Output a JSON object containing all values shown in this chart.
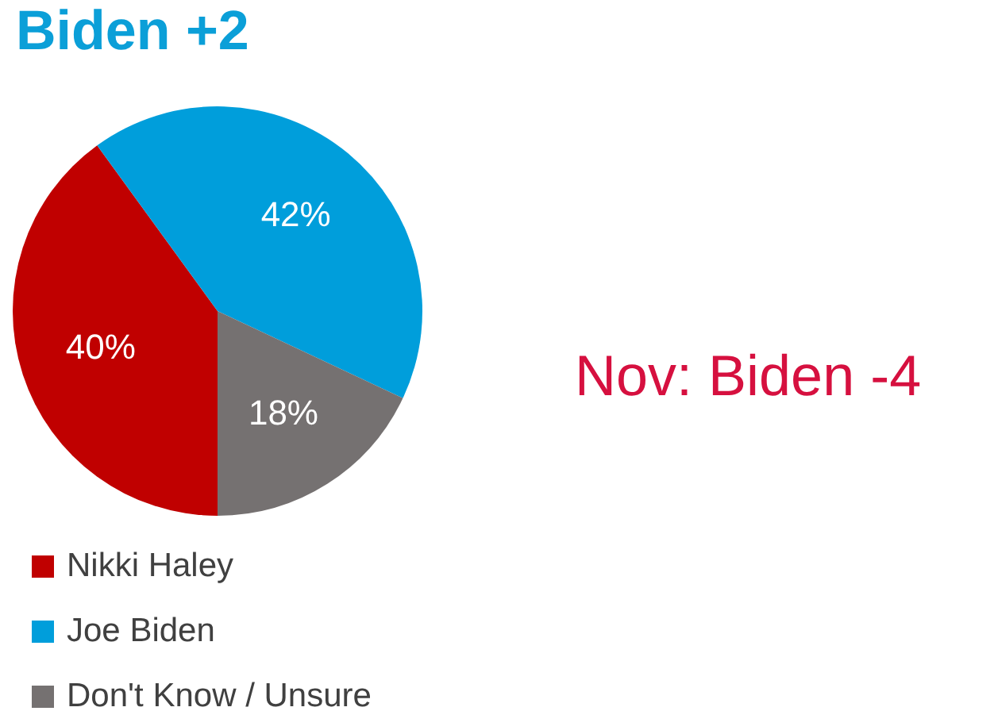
{
  "chart_data": {
    "type": "pie",
    "title": "Biden +2",
    "categories": [
      "Nikki Haley",
      "Joe Biden",
      "Don't Know / Unsure"
    ],
    "values": [
      40,
      42,
      18
    ],
    "colors": [
      "#c00000",
      "#009edb",
      "#757171"
    ],
    "value_labels": [
      "40%",
      "42%",
      "18%"
    ],
    "legend": "bottom left",
    "annotations": [
      "Nov: Biden -4"
    ]
  }
}
